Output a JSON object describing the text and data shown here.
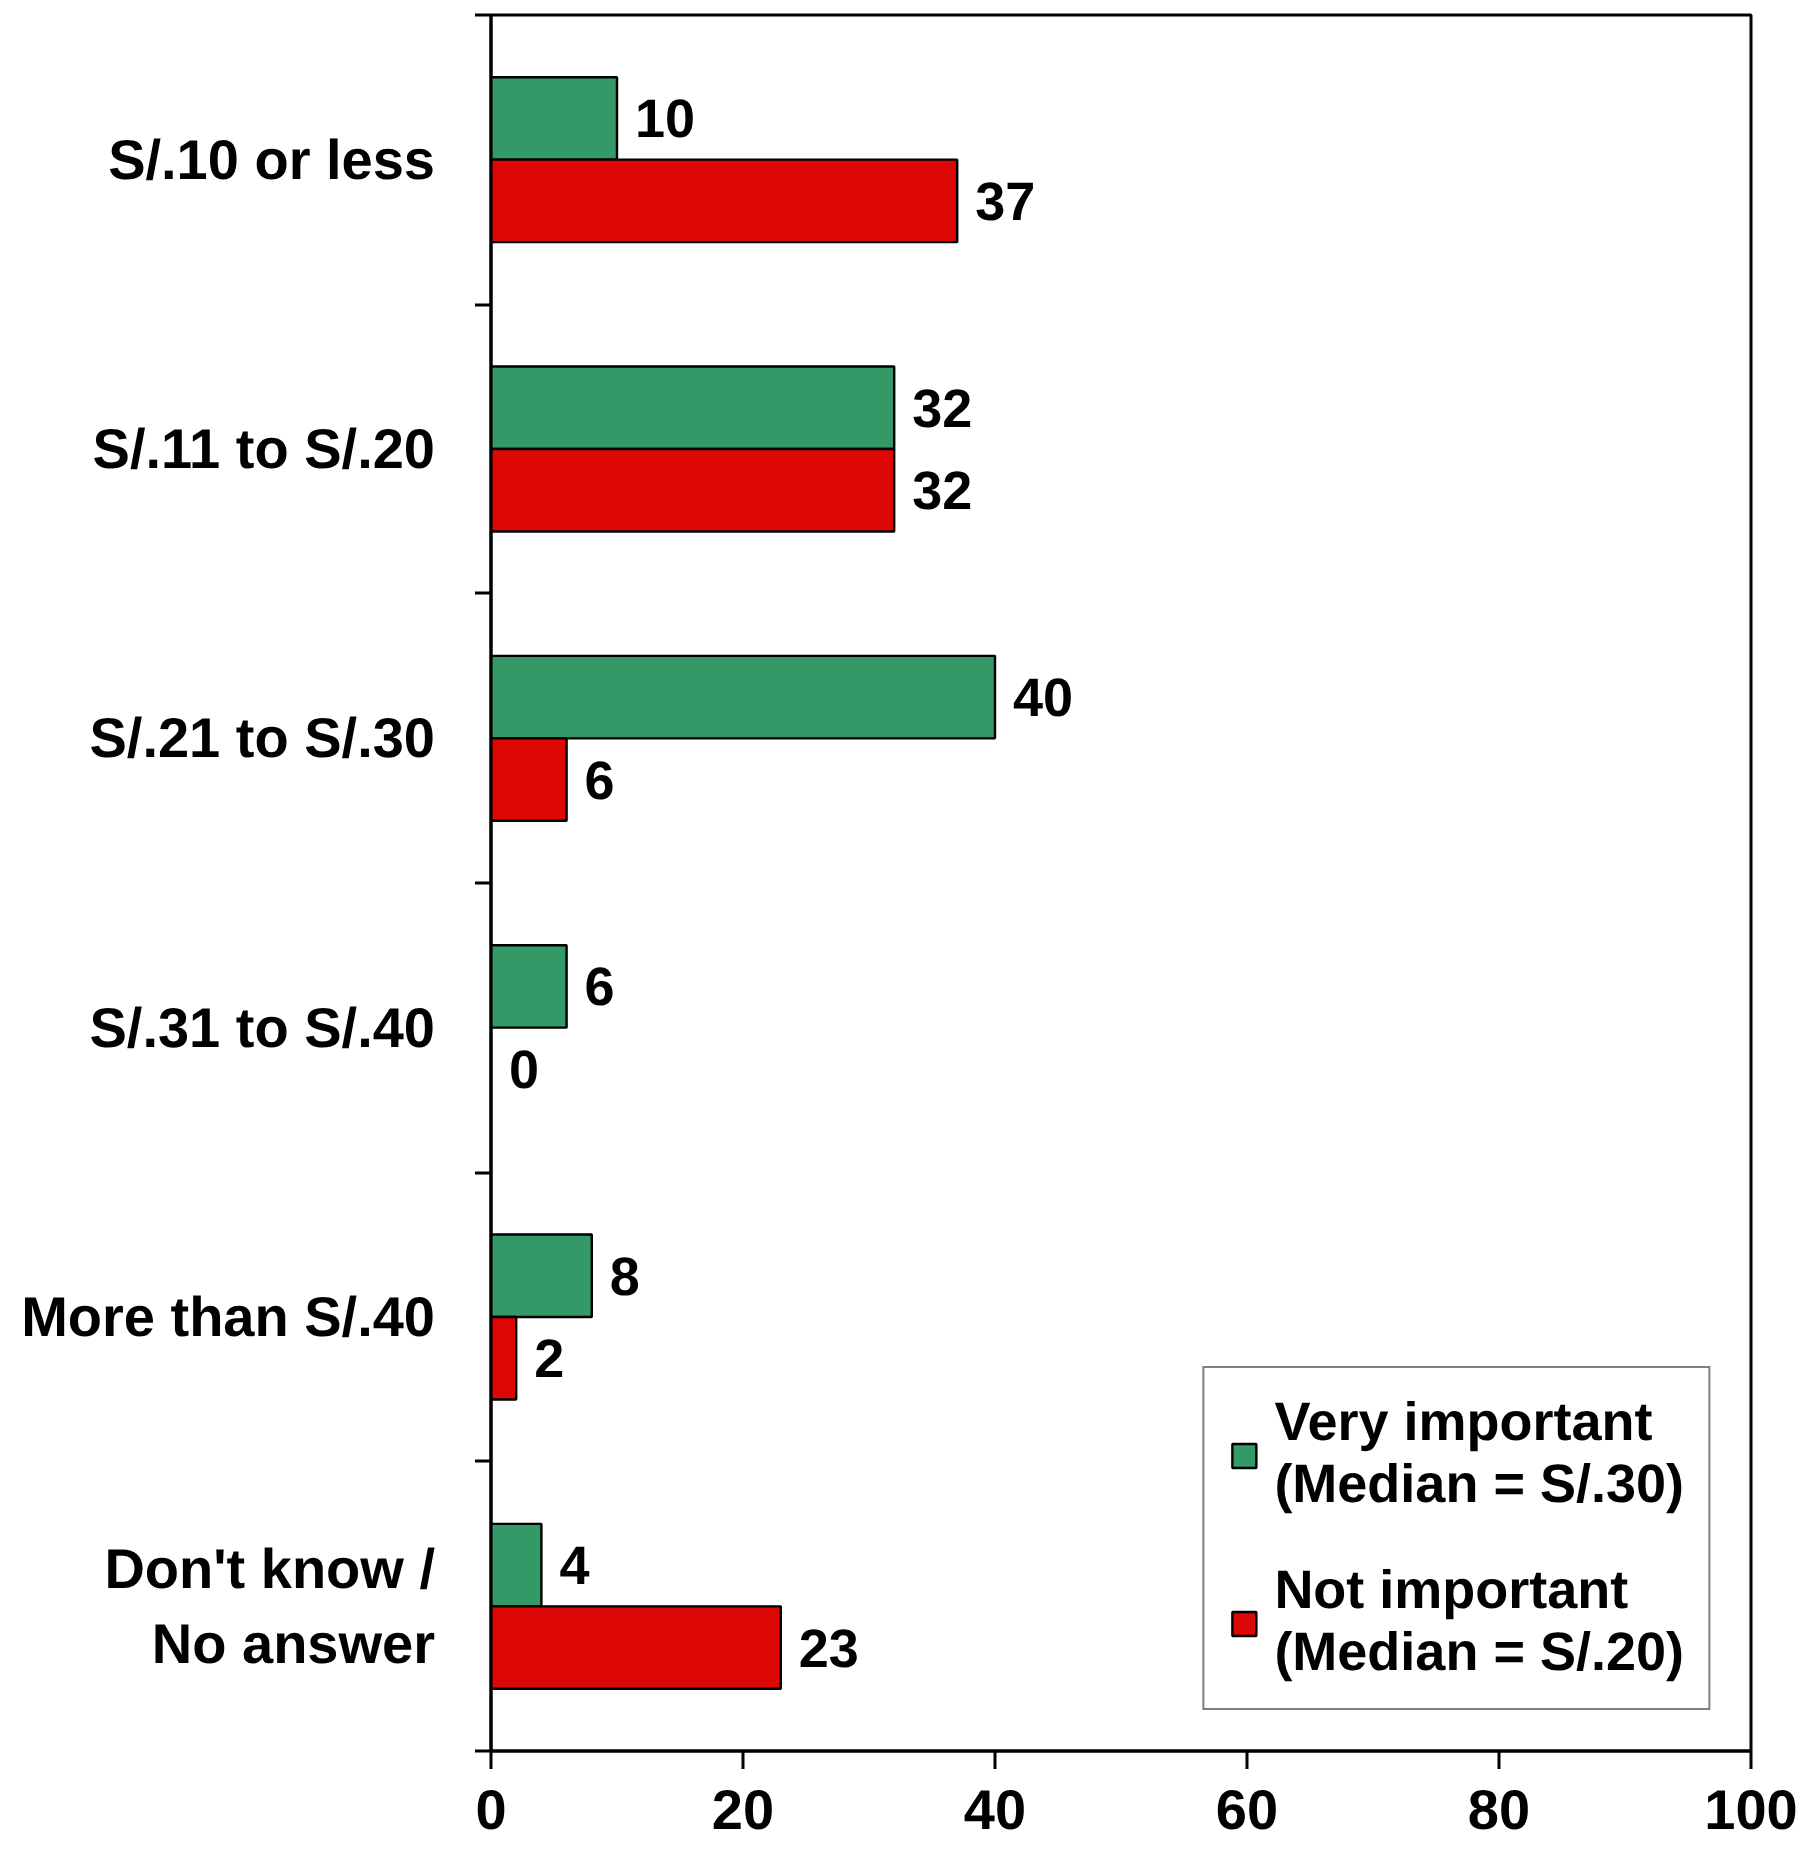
{
  "chart_data": {
    "type": "bar",
    "orientation": "horizontal",
    "categories": [
      "S/.10 or less",
      "S/.11 to S/.20",
      "S/.21 to S/.30",
      "S/.31 to S/.40",
      "More than S/.40",
      "Don't know /\nNo answer"
    ],
    "series": [
      {
        "name": "Very important\n(Median = S/.30)",
        "color": "#339966",
        "values": [
          10,
          32,
          40,
          6,
          8,
          4
        ]
      },
      {
        "name": "Not important\n(Median = S/.20)",
        "color": "#dd0806",
        "values": [
          37,
          32,
          6,
          0,
          2,
          23
        ]
      }
    ],
    "xlim": [
      0,
      100
    ],
    "xticks": [
      0,
      20,
      40,
      60,
      80,
      100
    ],
    "data_labels": true,
    "legend": "bottom right"
  }
}
